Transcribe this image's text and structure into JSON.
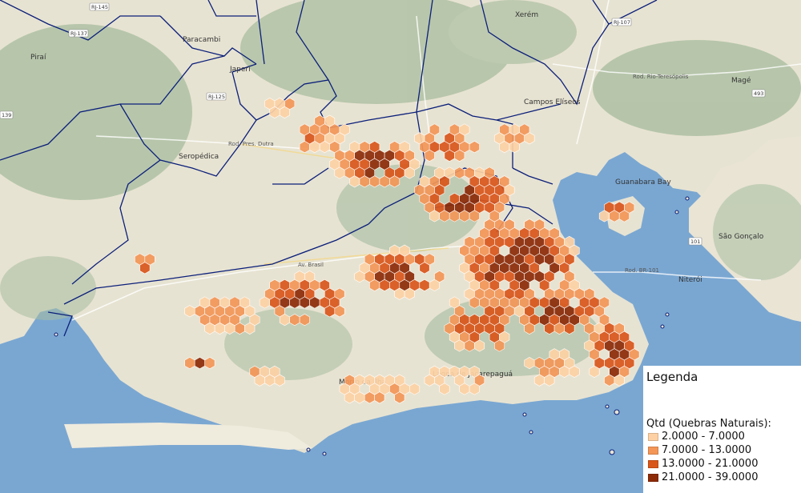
{
  "colors": {
    "ocean": "#7aa7d2",
    "land": "#e7e3d2",
    "border": "#0b1f7a",
    "class1": "#fdd1a4",
    "class2": "#f39657",
    "class3": "#d9561a",
    "class4": "#8c2a08"
  },
  "legend": {
    "title": "Legenda",
    "subtitle": "Qtd (Quebras Naturais):",
    "classes": [
      {
        "label": "2.0000 - 7.0000",
        "color": "#fdd1a4"
      },
      {
        "label": "7.0000 - 13.0000",
        "color": "#f39657"
      },
      {
        "label": "13.0000 - 21.0000",
        "color": "#d9561a"
      },
      {
        "label": "21.0000 - 39.0000",
        "color": "#8c2a08"
      }
    ]
  },
  "place_labels": {
    "paracambi": "Paracambi",
    "seropedica": "Seropédica",
    "japeri": "Japeri",
    "xerem": "Xerém",
    "campos_eliseos": "Campos Elíseos",
    "mage": "Magé",
    "sao_goncalo": "São Gonçalo",
    "niteroi": "Niterói",
    "guanabara_bay": "Guanabara Bay",
    "pirai": "Piraí",
    "morro_ilha": "Morro da Ilha",
    "lagoa_jacarepagua": "Lagoa de Jacarepaguá"
  },
  "road_labels": {
    "av_brasil": "Av. Brasil",
    "rod_pres_dutra": "Rod. Pres. Dutra",
    "rod_br101": "Rod. BR-101",
    "rod_rio_teresopolis": "Rod. Rio-Teresópolis"
  },
  "road_shields": [
    "RJ-145",
    "RJ-137",
    "RJ-125",
    "RJ-107",
    "139",
    "101",
    "493"
  ]
}
